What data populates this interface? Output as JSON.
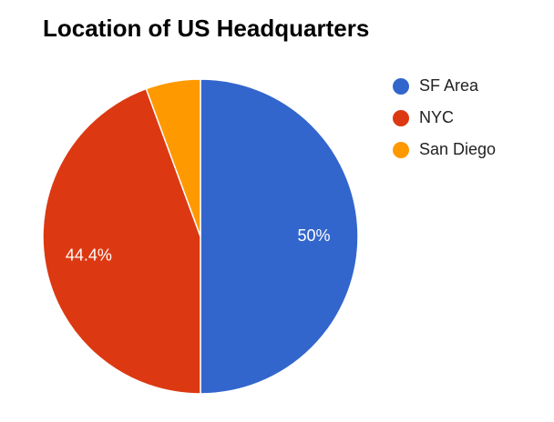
{
  "chart_data": {
    "type": "pie",
    "title": "Location of US Headquarters",
    "categories": [
      "SF Area",
      "NYC",
      "San Diego"
    ],
    "values": [
      50,
      44.4,
      5.6
    ],
    "value_labels": [
      "50%",
      "44.4%",
      null
    ],
    "colors": [
      "#3366cc",
      "#dc3912",
      "#ff9900"
    ],
    "legend": "right"
  }
}
